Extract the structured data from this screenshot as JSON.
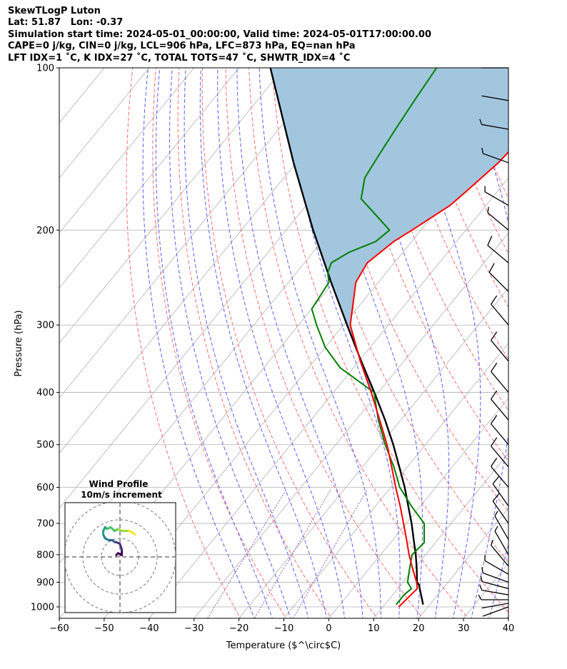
{
  "header": {
    "line1": "SkewTLogP Luton",
    "line2": "Lat: 51.87   Lon: -0.37",
    "line3": "Simulation start time: 2024-05-01_00:00:00, Valid time: 2024-05-01T17:00:00.00",
    "line4": "CAPE=0 j/kg, CIN=0 j/kg, LCL=906 hPa, LFC=873 hPa, EQ=nan hPa",
    "line5": "LFT IDX=1 ˚C, K IDX=27 ˚C, TOTAL TOTS=47 ˚C, SHWTR_IDX=4 ˚C"
  },
  "chart_data": {
    "type": "skewt",
    "xlabel": "Temperature ($^\\circ$C)",
    "ylabel": "Pressure (hPa)",
    "xlim": [
      -60,
      40
    ],
    "ylim": [
      1050,
      100
    ],
    "x_ticks": [
      "−60",
      "−50",
      "−40",
      "−30",
      "−20",
      "−10",
      "0",
      "10",
      "20",
      "30",
      "40"
    ],
    "y_ticks": [
      "100",
      "200",
      "300",
      "400",
      "500",
      "600",
      "700",
      "800",
      "900",
      "1000"
    ],
    "y_tick_values": [
      100,
      200,
      300,
      400,
      500,
      600,
      700,
      800,
      900,
      1000
    ],
    "grid": true,
    "colors": {
      "temperature": "#ff0000",
      "dewpoint": "#008000",
      "parcel": "#000000",
      "shade": "#a3c6df",
      "dry_adiabat": "#ff6b6b",
      "moist_adiabat": "#5b5bff",
      "isotherm": "#b0b0b0",
      "mixing_ratio": "#9955bb"
    },
    "temperature": {
      "p": [
        1000,
        925,
        900,
        850,
        800,
        750,
        700,
        650,
        600,
        550,
        500,
        450,
        400,
        350,
        300,
        250,
        230,
        210,
        200,
        180,
        170,
        150,
        130,
        115,
        100
      ],
      "t": [
        13.5,
        14.3,
        13.0,
        9.7,
        6.3,
        3.0,
        -0.6,
        -4.5,
        -8.9,
        -13.5,
        -18.6,
        -24.7,
        -31.6,
        -39.7,
        -48.5,
        -55.0,
        -56.0,
        -54.0,
        -52.0,
        -48.0,
        -47.0,
        -45.0,
        -44.0,
        -42.0,
        -41.0
      ]
    },
    "dewpoint": {
      "p": [
        990,
        950,
        925,
        900,
        850,
        800,
        760,
        700,
        650,
        600,
        550,
        500,
        450,
        400,
        360,
        330,
        300,
        280,
        250,
        240,
        230,
        220,
        210,
        200,
        185,
        175,
        160,
        145,
        130,
        115,
        100
      ],
      "td": [
        12.5,
        12.5,
        13.0,
        11.0,
        9.0,
        7.0,
        7.5,
        4.0,
        -2.0,
        -8.0,
        -13.0,
        -19.0,
        -25.0,
        -31.0,
        -43.0,
        -50.0,
        -56.0,
        -60.0,
        -61.0,
        -63.0,
        -64.0,
        -62.0,
        -58.0,
        -57.0,
        -64.0,
        -69.0,
        -72.0,
        -73.0,
        -74.0,
        -75.0,
        -76.0
      ]
    },
    "parcel": {
      "p": [
        990,
        910,
        900,
        850,
        800,
        750,
        700,
        650,
        600,
        550,
        500,
        450,
        400,
        350,
        300,
        250,
        200,
        150,
        100
      ],
      "t": [
        18.5,
        14.0,
        13.1,
        10.6,
        7.8,
        4.6,
        1.2,
        -2.7,
        -6.9,
        -11.8,
        -17.2,
        -23.5,
        -30.9,
        -39.5,
        -49.2,
        -60.5,
        -74.0,
        -90.6,
        -113.0
      ]
    },
    "wind_barbs": {
      "unit": "m/s",
      "p": [
        1000,
        985,
        970,
        950,
        925,
        900,
        870,
        840,
        800,
        750,
        700,
        650,
        600,
        550,
        500,
        450,
        400,
        350,
        300,
        260,
        230,
        200,
        180,
        150,
        130,
        115,
        100
      ],
      "speed": [
        3,
        4,
        5,
        6,
        6,
        6,
        5,
        5,
        6,
        9,
        11,
        12,
        13,
        14,
        14,
        14,
        13,
        12,
        12,
        10,
        10,
        9,
        8,
        6,
        5,
        4,
        3
      ],
      "direction": [
        250,
        260,
        270,
        280,
        285,
        290,
        300,
        320,
        330,
        330,
        325,
        325,
        320,
        320,
        320,
        320,
        320,
        320,
        320,
        315,
        310,
        310,
        300,
        290,
        280,
        280,
        270
      ]
    },
    "hodograph": {
      "title_line1": "Wind Profile",
      "title_line2": "10m/s increment",
      "u": [
        -2,
        -1,
        1,
        1,
        0,
        -2,
        -3,
        -4,
        -5,
        -6,
        -8,
        -9,
        -9,
        -8,
        -7,
        -5,
        -3,
        -1,
        1,
        3,
        5,
        7,
        8
      ],
      "v": [
        1,
        2,
        1,
        4,
        7,
        8,
        8,
        9,
        9,
        9,
        10,
        12,
        14,
        16,
        15,
        16,
        14,
        15,
        14,
        14,
        14,
        13,
        12
      ]
    }
  }
}
